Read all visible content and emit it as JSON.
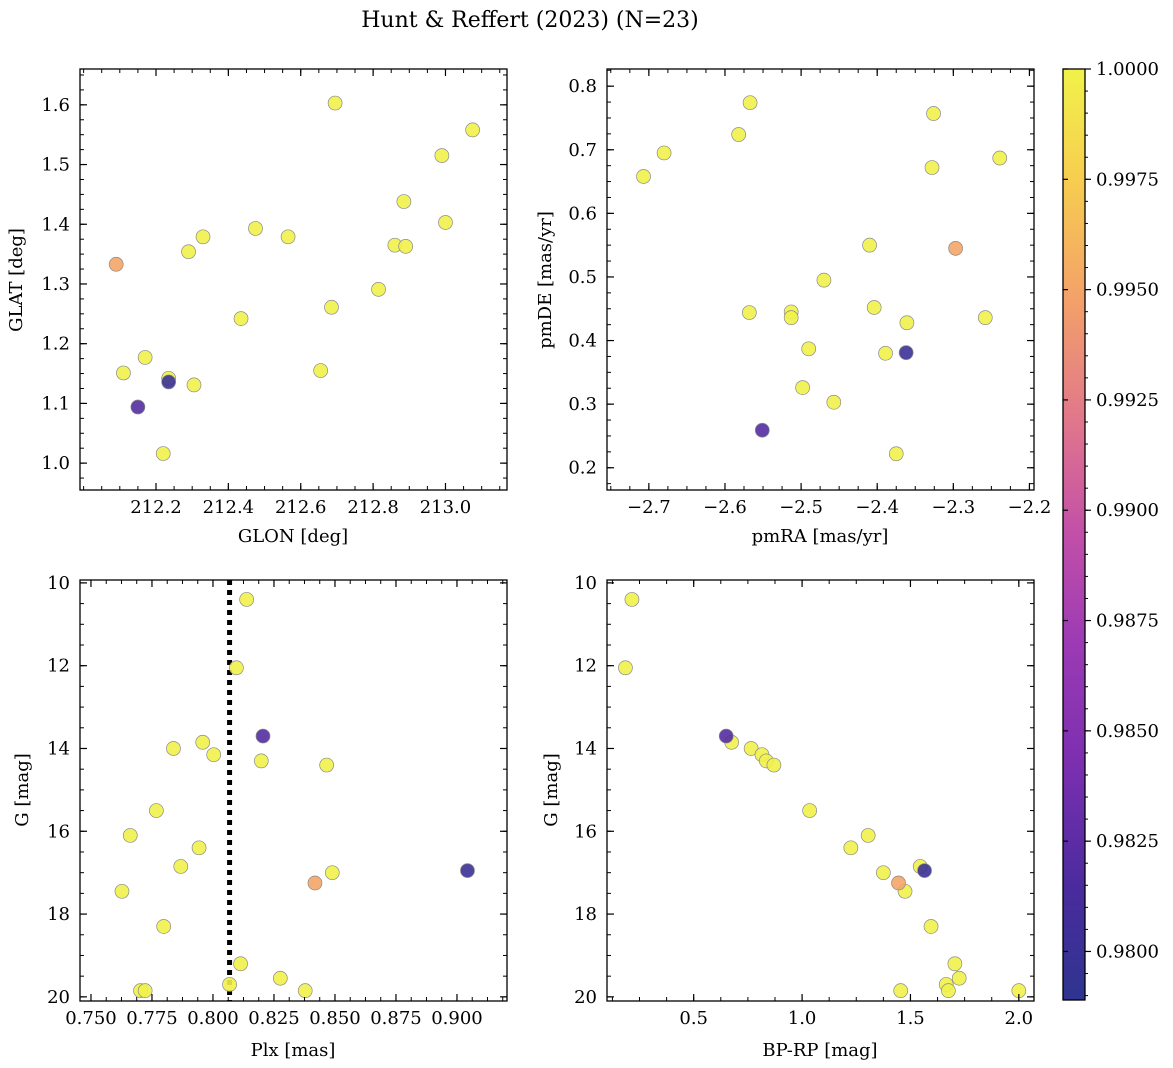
{
  "title": "Hunt & Reffert (2023) (N=23)",
  "colorbar": {
    "min": 0.9789,
    "max": 1.0,
    "ticks": [
      0.98,
      0.9825,
      0.985,
      0.9875,
      0.99,
      0.9925,
      0.995,
      0.9975,
      1.0
    ],
    "tick_labels": [
      "0.9800",
      "0.9825",
      "0.9850",
      "0.9875",
      "0.9900",
      "0.9925",
      "0.9950",
      "0.9975",
      "1.0000"
    ],
    "colormap": "plasma"
  },
  "chart_data": [
    {
      "type": "scatter",
      "xlabel": "GLON [deg]",
      "ylabel": "GLAT [deg]",
      "xlim": [
        211.99,
        213.17
      ],
      "ylim": [
        0.955,
        1.66
      ],
      "y_inverted": false,
      "xticks": [
        212.2,
        212.4,
        212.6,
        212.8,
        213.0
      ],
      "xtick_labels": [
        "212.2",
        "212.4",
        "212.6",
        "212.8",
        "213.0"
      ],
      "yticks": [
        1.0,
        1.1,
        1.2,
        1.3,
        1.4,
        1.5,
        1.6
      ],
      "ytick_labels": [
        "1.0",
        "1.1",
        "1.2",
        "1.3",
        "1.4",
        "1.5",
        "1.6"
      ],
      "points": [
        {
          "x": 212.09,
          "y": 1.333,
          "c": 0.995
        },
        {
          "x": 212.11,
          "y": 1.151,
          "c": 1.0
        },
        {
          "x": 212.15,
          "y": 1.094,
          "c": 0.982
        },
        {
          "x": 212.17,
          "y": 1.177,
          "c": 1.0
        },
        {
          "x": 212.22,
          "y": 1.016,
          "c": 1.0
        },
        {
          "x": 212.235,
          "y": 1.136,
          "c": 0.98
        },
        {
          "x": 212.235,
          "y": 1.142,
          "c": 1.0
        },
        {
          "x": 212.29,
          "y": 1.354,
          "c": 1.0
        },
        {
          "x": 212.305,
          "y": 1.131,
          "c": 1.0
        },
        {
          "x": 212.33,
          "y": 1.379,
          "c": 1.0
        },
        {
          "x": 212.435,
          "y": 1.242,
          "c": 1.0
        },
        {
          "x": 212.475,
          "y": 1.393,
          "c": 1.0
        },
        {
          "x": 212.565,
          "y": 1.379,
          "c": 1.0
        },
        {
          "x": 212.655,
          "y": 1.155,
          "c": 1.0
        },
        {
          "x": 212.685,
          "y": 1.261,
          "c": 1.0
        },
        {
          "x": 212.695,
          "y": 1.603,
          "c": 1.0
        },
        {
          "x": 212.815,
          "y": 1.291,
          "c": 1.0
        },
        {
          "x": 212.86,
          "y": 1.365,
          "c": 1.0
        },
        {
          "x": 212.885,
          "y": 1.438,
          "c": 1.0
        },
        {
          "x": 212.89,
          "y": 1.363,
          "c": 1.0
        },
        {
          "x": 212.99,
          "y": 1.515,
          "c": 1.0
        },
        {
          "x": 213.0,
          "y": 1.403,
          "c": 1.0
        },
        {
          "x": 213.075,
          "y": 1.558,
          "c": 1.0
        }
      ]
    },
    {
      "type": "scatter",
      "xlabel": "pmRA [mas/yr]",
      "ylabel": "pmDE [mas/yr]",
      "xlim": [
        -2.755,
        -2.194
      ],
      "ylim": [
        0.165,
        0.827
      ],
      "y_inverted": false,
      "xticks": [
        -2.7,
        -2.6,
        -2.5,
        -2.4,
        -2.3,
        -2.2
      ],
      "xtick_labels": [
        "−2.7",
        "−2.6",
        "−2.5",
        "−2.4",
        "−2.3",
        "−2.2"
      ],
      "yticks": [
        0.2,
        0.3,
        0.4,
        0.5,
        0.6,
        0.7,
        0.8
      ],
      "ytick_labels": [
        "0.2",
        "0.3",
        "0.4",
        "0.5",
        "0.6",
        "0.7",
        "0.8"
      ],
      "points": [
        {
          "x": -2.707,
          "y": 0.658,
          "c": 1.0
        },
        {
          "x": -2.68,
          "y": 0.695,
          "c": 1.0
        },
        {
          "x": -2.582,
          "y": 0.724,
          "c": 1.0
        },
        {
          "x": -2.567,
          "y": 0.774,
          "c": 1.0
        },
        {
          "x": -2.568,
          "y": 0.444,
          "c": 1.0
        },
        {
          "x": -2.551,
          "y": 0.259,
          "c": 0.982
        },
        {
          "x": -2.513,
          "y": 0.445,
          "c": 1.0
        },
        {
          "x": -2.513,
          "y": 0.436,
          "c": 1.0
        },
        {
          "x": -2.498,
          "y": 0.326,
          "c": 1.0
        },
        {
          "x": -2.49,
          "y": 0.387,
          "c": 1.0
        },
        {
          "x": -2.47,
          "y": 0.495,
          "c": 1.0
        },
        {
          "x": -2.457,
          "y": 0.303,
          "c": 1.0
        },
        {
          "x": -2.41,
          "y": 0.55,
          "c": 1.0
        },
        {
          "x": -2.404,
          "y": 0.452,
          "c": 1.0
        },
        {
          "x": -2.389,
          "y": 0.38,
          "c": 1.0
        },
        {
          "x": -2.375,
          "y": 0.222,
          "c": 1.0
        },
        {
          "x": -2.362,
          "y": 0.381,
          "c": 0.98
        },
        {
          "x": -2.361,
          "y": 0.428,
          "c": 1.0
        },
        {
          "x": -2.326,
          "y": 0.757,
          "c": 1.0
        },
        {
          "x": -2.328,
          "y": 0.672,
          "c": 1.0
        },
        {
          "x": -2.297,
          "y": 0.545,
          "c": 0.995
        },
        {
          "x": -2.258,
          "y": 0.436,
          "c": 1.0
        },
        {
          "x": -2.239,
          "y": 0.687,
          "c": 1.0
        }
      ]
    },
    {
      "type": "scatter",
      "xlabel": "Plx [mas]",
      "ylabel": "G [mag]",
      "xlim": [
        0.7455,
        0.9205
      ],
      "ylim": [
        20.1,
        9.93
      ],
      "y_inverted": true,
      "xticks": [
        0.75,
        0.775,
        0.8,
        0.825,
        0.85,
        0.875,
        0.9
      ],
      "xtick_labels": [
        "0.750",
        "0.775",
        "0.800",
        "0.825",
        "0.850",
        "0.875",
        "0.900"
      ],
      "yticks": [
        10,
        12,
        14,
        16,
        18,
        20
      ],
      "ytick_labels": [
        "10",
        "12",
        "14",
        "16",
        "18",
        "20"
      ],
      "vline": {
        "x": 0.8068,
        "style": "dotted"
      },
      "points": [
        {
          "x": 0.8138,
          "y": 10.4,
          "c": 1.0
        },
        {
          "x": 0.8096,
          "y": 12.05,
          "c": 1.0
        },
        {
          "x": 0.8205,
          "y": 13.7,
          "c": 0.982
        },
        {
          "x": 0.7838,
          "y": 14.0,
          "c": 1.0
        },
        {
          "x": 0.7958,
          "y": 13.85,
          "c": 1.0
        },
        {
          "x": 0.8003,
          "y": 14.15,
          "c": 1.0
        },
        {
          "x": 0.8198,
          "y": 14.3,
          "c": 1.0
        },
        {
          "x": 0.8466,
          "y": 14.4,
          "c": 1.0
        },
        {
          "x": 0.7768,
          "y": 15.5,
          "c": 1.0
        },
        {
          "x": 0.7661,
          "y": 16.1,
          "c": 1.0
        },
        {
          "x": 0.7943,
          "y": 16.4,
          "c": 1.0
        },
        {
          "x": 0.7868,
          "y": 16.85,
          "c": 1.0
        },
        {
          "x": 0.8489,
          "y": 17.0,
          "c": 1.0
        },
        {
          "x": 0.9043,
          "y": 16.95,
          "c": 0.98
        },
        {
          "x": 0.8418,
          "y": 17.25,
          "c": 0.995
        },
        {
          "x": 0.7627,
          "y": 17.45,
          "c": 1.0
        },
        {
          "x": 0.7798,
          "y": 18.3,
          "c": 1.0
        },
        {
          "x": 0.8113,
          "y": 19.2,
          "c": 1.0
        },
        {
          "x": 0.8276,
          "y": 19.55,
          "c": 1.0
        },
        {
          "x": 0.8068,
          "y": 19.7,
          "c": 1.0
        },
        {
          "x": 0.7703,
          "y": 19.85,
          "c": 1.0
        },
        {
          "x": 0.7722,
          "y": 19.85,
          "c": 1.0
        },
        {
          "x": 0.8378,
          "y": 19.85,
          "c": 1.0
        }
      ]
    },
    {
      "type": "scatter",
      "xlabel": "BP-RP [mag]",
      "ylabel": "G [mag]",
      "xlim": [
        0.1,
        2.07
      ],
      "ylim": [
        20.1,
        9.93
      ],
      "y_inverted": true,
      "xticks": [
        0.5,
        1.0,
        1.5,
        2.0
      ],
      "xtick_labels": [
        "0.5",
        "1.0",
        "1.5",
        "2.0"
      ],
      "yticks": [
        10,
        12,
        14,
        16,
        18,
        20
      ],
      "ytick_labels": [
        "10",
        "12",
        "14",
        "16",
        "18",
        "20"
      ],
      "points": [
        {
          "x": 0.215,
          "y": 10.4,
          "c": 1.0
        },
        {
          "x": 0.185,
          "y": 12.05,
          "c": 1.0
        },
        {
          "x": 0.65,
          "y": 13.7,
          "c": 0.982
        },
        {
          "x": 0.675,
          "y": 13.85,
          "c": 1.0
        },
        {
          "x": 0.765,
          "y": 14.0,
          "c": 1.0
        },
        {
          "x": 0.815,
          "y": 14.15,
          "c": 1.0
        },
        {
          "x": 0.835,
          "y": 14.3,
          "c": 1.0
        },
        {
          "x": 0.87,
          "y": 14.4,
          "c": 1.0
        },
        {
          "x": 1.035,
          "y": 15.5,
          "c": 1.0
        },
        {
          "x": 1.305,
          "y": 16.1,
          "c": 1.0
        },
        {
          "x": 1.225,
          "y": 16.4,
          "c": 1.0
        },
        {
          "x": 1.545,
          "y": 16.85,
          "c": 1.0
        },
        {
          "x": 1.565,
          "y": 16.95,
          "c": 0.98
        },
        {
          "x": 1.375,
          "y": 17.0,
          "c": 1.0
        },
        {
          "x": 1.445,
          "y": 17.25,
          "c": 0.995
        },
        {
          "x": 1.475,
          "y": 17.45,
          "c": 1.0
        },
        {
          "x": 1.595,
          "y": 18.3,
          "c": 1.0
        },
        {
          "x": 1.705,
          "y": 19.2,
          "c": 1.0
        },
        {
          "x": 1.725,
          "y": 19.55,
          "c": 1.0
        },
        {
          "x": 1.665,
          "y": 19.7,
          "c": 1.0
        },
        {
          "x": 1.675,
          "y": 19.85,
          "c": 1.0
        },
        {
          "x": 1.455,
          "y": 19.85,
          "c": 1.0
        },
        {
          "x": 2.0,
          "y": 19.85,
          "c": 1.0
        }
      ]
    }
  ]
}
